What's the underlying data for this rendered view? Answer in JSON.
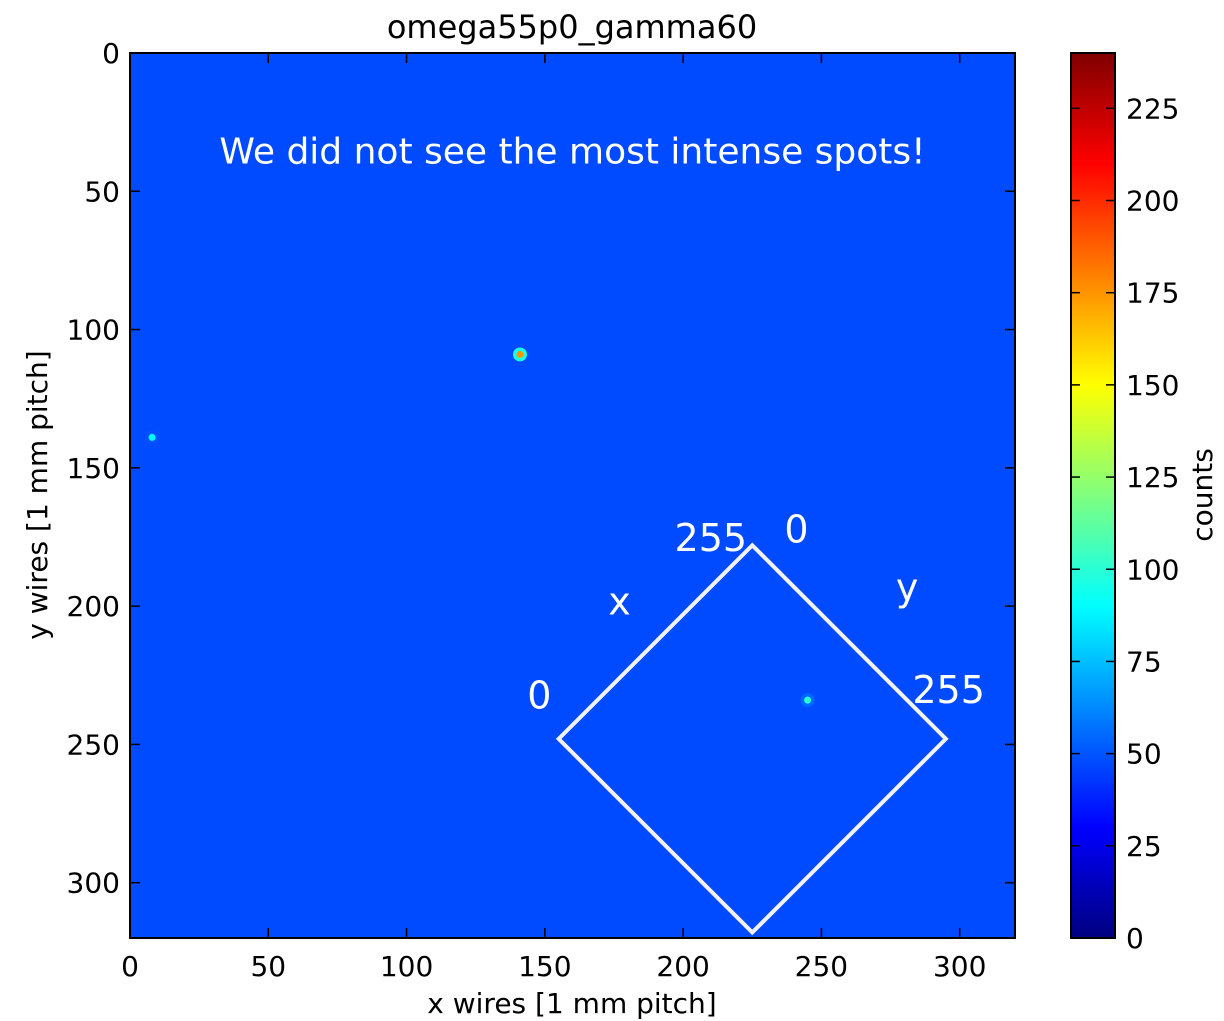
{
  "chart_data": {
    "type": "heatmap",
    "title": "omega55p0_gamma60",
    "xlabel": "x wires [1 mm pitch]",
    "ylabel": "y wires [1 mm pitch]",
    "xlim": [
      0,
      320
    ],
    "ylim": [
      320,
      0
    ],
    "x_ticks": [
      0,
      50,
      100,
      150,
      200,
      250,
      300
    ],
    "y_ticks": [
      0,
      50,
      100,
      150,
      200,
      250,
      300
    ],
    "background_level_counts": 50,
    "colorbar": {
      "label": "counts",
      "range": [
        0,
        240
      ],
      "ticks": [
        0,
        25,
        50,
        75,
        100,
        125,
        150,
        175,
        200,
        225
      ],
      "colormap": "jet",
      "stops": [
        "#00007f",
        "#0000ff",
        "#007fff",
        "#00ffff",
        "#7fff7f",
        "#ffff00",
        "#ff7f00",
        "#ff0000",
        "#7f0000"
      ]
    },
    "spots": [
      {
        "x": 141,
        "y": 109,
        "counts": 175
      },
      {
        "x": 8,
        "y": 139,
        "counts": 90
      },
      {
        "x": 245,
        "y": 234,
        "counts": 100
      }
    ],
    "annotations": {
      "message": "We did not see the most intense spots!",
      "diamond": {
        "corners": [
          [
            225,
            178
          ],
          [
            295,
            248
          ],
          [
            225,
            318
          ],
          [
            155,
            248
          ]
        ],
        "labels": [
          {
            "text": "255",
            "x": 210,
            "y": 180
          },
          {
            "text": "0",
            "x": 241,
            "y": 177
          },
          {
            "text": "x",
            "x": 177,
            "y": 203
          },
          {
            "text": "y",
            "x": 281,
            "y": 198
          },
          {
            "text": "0",
            "x": 148,
            "y": 237
          },
          {
            "text": "255",
            "x": 296,
            "y": 235
          }
        ]
      }
    }
  }
}
